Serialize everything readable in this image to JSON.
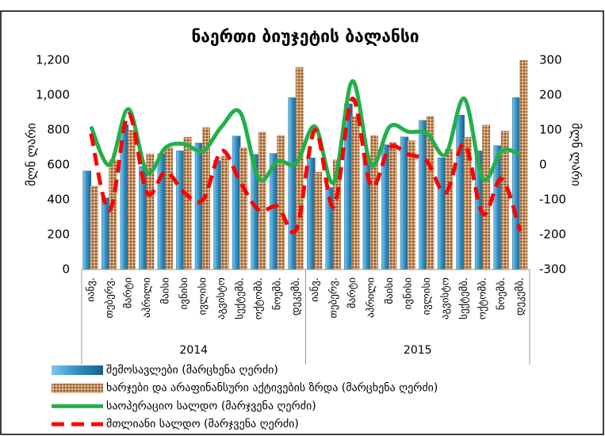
{
  "chart_data": {
    "type": "bar-line",
    "title": "ნაერთი ბიუჯეტის ბალანსი",
    "y_label": "მლნ ლარი",
    "y2_label": "მლნ ლარი",
    "categories": [
      "იანვ.",
      "თებერვ.",
      "მარტი",
      "აპრილი",
      "მაისი",
      "ივნისი",
      "ივლისი",
      "აგვისტო",
      "სექტემბ.",
      "ოქტომბ.",
      "ნოემბ.",
      "დეკემბ.",
      "იანვ.",
      "თებერვ.",
      "მარტი",
      "აპრილი",
      "მაისი",
      "ივნისი",
      "ივლისი",
      "აგვისტო",
      "სექტემბ.",
      "ოქტომბ.",
      "ნოემბ.",
      "დეკემბ."
    ],
    "groups": [
      "2014",
      "2015"
    ],
    "series": [
      {
        "name": "შემოსავლები (მარცხენა ღერძი)",
        "kind": "bar",
        "color": "#2f8fc4",
        "values": [
          565,
          410,
          830,
          590,
          665,
          680,
          725,
          625,
          765,
          660,
          665,
          985,
          640,
          470,
          950,
          650,
          715,
          760,
          855,
          640,
          885,
          680,
          710,
          985
        ]
      },
      {
        "name": "ხარჯები და არაფინანსური აქტივების ზრდა (მარცხენა ღერძი)",
        "kind": "bar",
        "color": "#b5804f",
        "values": [
          480,
          630,
          800,
          665,
          700,
          760,
          815,
          650,
          700,
          790,
          770,
          1160,
          560,
          630,
          880,
          770,
          730,
          740,
          880,
          690,
          760,
          830,
          795,
          1200
        ]
      },
      {
        "name": "საოპერაციო სალდო (მარჯვენა ღერძი)",
        "kind": "line",
        "axis": "y2",
        "color": "#22b04b",
        "values": [
          110,
          0,
          160,
          -20,
          50,
          60,
          40,
          110,
          150,
          -40,
          10,
          5,
          110,
          -50,
          240,
          0,
          110,
          95,
          90,
          30,
          190,
          -40,
          40,
          30
        ]
      },
      {
        "name": "მთლიანი სალდო (მარჯვენა ღერძი)",
        "kind": "dashed-line",
        "axis": "y2",
        "color": "#ff0000",
        "values": [
          90,
          -130,
          145,
          -80,
          -20,
          -80,
          -100,
          40,
          -50,
          -130,
          -120,
          -185,
          100,
          -120,
          190,
          -60,
          50,
          30,
          10,
          -80,
          60,
          -140,
          -40,
          -190
        ]
      }
    ],
    "ylim": [
      0,
      1200
    ],
    "yticks": [
      0,
      200,
      400,
      600,
      800,
      {
        "value": 1000,
        "label": "1,000"
      },
      {
        "value": 1200,
        "label": "1,200"
      }
    ],
    "y2lim": [
      -300,
      300
    ],
    "y2ticks": [
      -300,
      -200,
      -100,
      0,
      100,
      200,
      300
    ],
    "legend": "bottom"
  }
}
